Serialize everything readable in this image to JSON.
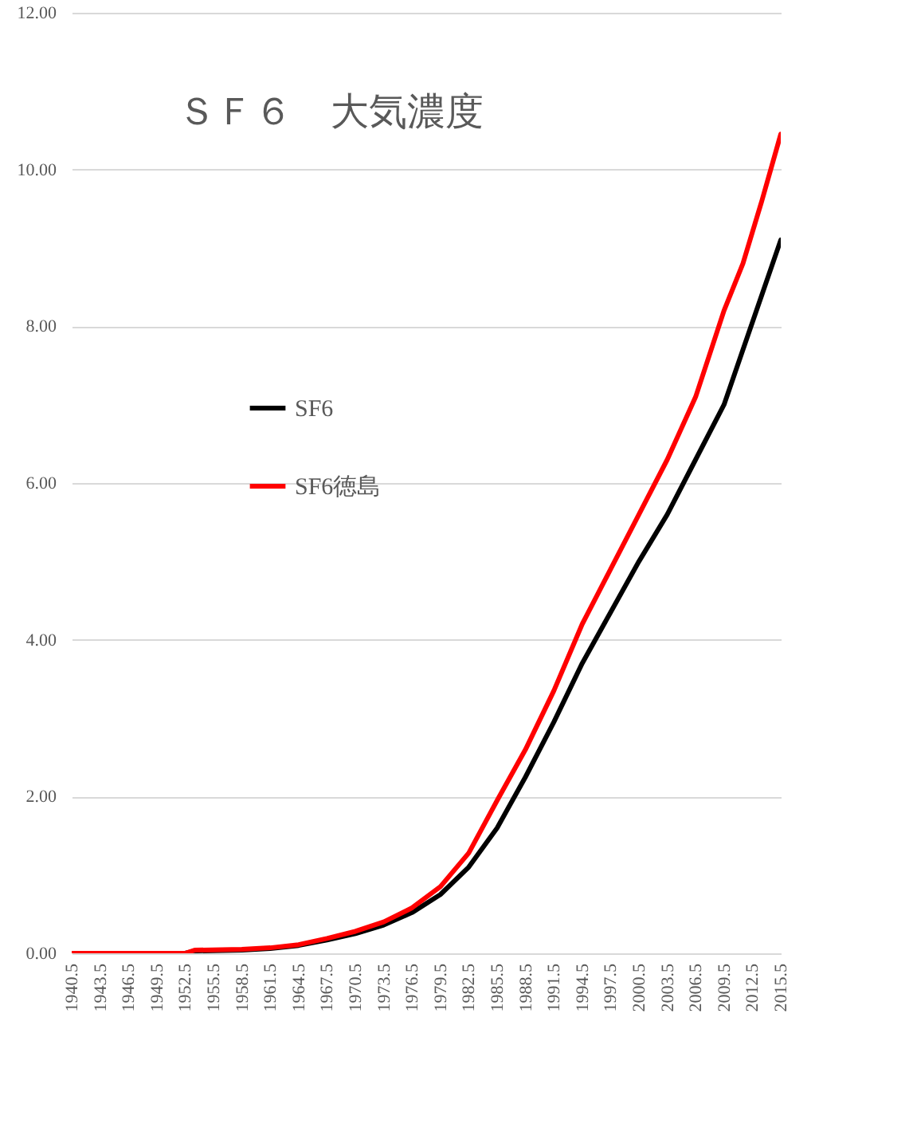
{
  "chart_data": {
    "type": "line",
    "title": "ＳＦ６　大気濃度",
    "x": [
      1940.5,
      1952.5,
      1953.5,
      1958.5,
      1961.5,
      1964.5,
      1967.5,
      1970.5,
      1973.5,
      1976.5,
      1979.5,
      1982.5,
      1985.5,
      1988.5,
      1991.5,
      1994.5,
      1997.5,
      2000.5,
      2003.5,
      2006.5,
      2009.5,
      2011.5,
      2013.5,
      2015.5
    ],
    "series": [
      {
        "name": "SF6",
        "color": "#000000",
        "values": [
          0,
          0,
          0.03,
          0.04,
          0.06,
          0.1,
          0.17,
          0.25,
          0.36,
          0.52,
          0.75,
          1.1,
          1.6,
          2.25,
          2.95,
          3.7,
          4.35,
          5.0,
          5.6,
          6.3,
          7.0,
          7.7,
          8.4,
          9.1
        ]
      },
      {
        "name": "SF6徳島",
        "color": "#ff0000",
        "values": [
          0,
          0,
          0.04,
          0.05,
          0.07,
          0.11,
          0.19,
          0.28,
          0.4,
          0.58,
          0.85,
          1.28,
          1.95,
          2.6,
          3.35,
          4.2,
          4.9,
          5.6,
          6.3,
          7.1,
          8.2,
          8.8,
          9.6,
          10.45
        ]
      }
    ],
    "xlim": [
      1940.5,
      2015.5
    ],
    "xticks": [
      1940.5,
      1943.5,
      1946.5,
      1949.5,
      1952.5,
      1955.5,
      1958.5,
      1961.5,
      1964.5,
      1967.5,
      1970.5,
      1973.5,
      1976.5,
      1979.5,
      1982.5,
      1985.5,
      1988.5,
      1991.5,
      1994.5,
      1997.5,
      2000.5,
      2003.5,
      2006.5,
      2009.5,
      2012.5,
      2015.5
    ],
    "ylim": [
      0,
      12
    ],
    "yticks": [
      {
        "value": 0,
        "label": "0.00"
      },
      {
        "value": 2,
        "label": "2.00"
      },
      {
        "value": 4,
        "label": "4.00"
      },
      {
        "value": 6,
        "label": "6.00"
      },
      {
        "value": 8,
        "label": "8.00"
      },
      {
        "value": 10,
        "label": "10.00"
      },
      {
        "value": 12,
        "label": "12.00"
      }
    ],
    "grid": "y",
    "legend": "left",
    "marker": "none",
    "line_style": "solid"
  }
}
